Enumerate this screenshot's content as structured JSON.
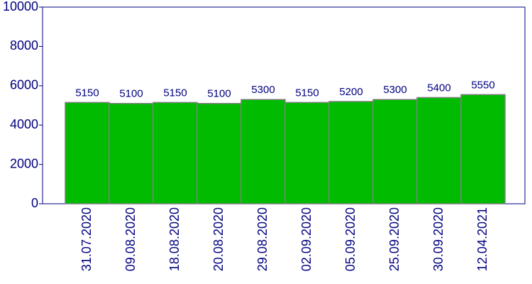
{
  "chart_data": {
    "type": "bar",
    "categories": [
      "31.07.2020",
      "09.08.2020",
      "18.08.2020",
      "20.08.2020",
      "29.08.2020",
      "02.09.2020",
      "05.09.2020",
      "25.09.2020",
      "30.09.2020",
      "12.04.2021"
    ],
    "values": [
      5150,
      5100,
      5150,
      5100,
      5300,
      5150,
      5200,
      5300,
      5400,
      5550
    ],
    "color": "#00bb00",
    "ylim": [
      0,
      10000
    ],
    "yticks": [
      0,
      2000,
      4000,
      6000,
      8000,
      10000
    ],
    "grid": false
  }
}
